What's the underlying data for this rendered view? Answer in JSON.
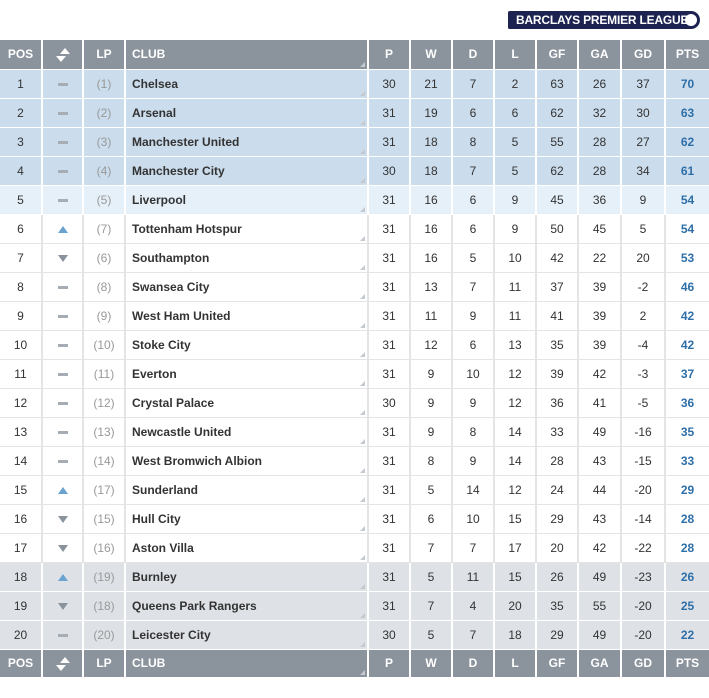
{
  "logo": {
    "text": "BARCLAYS PREMIER LEAGUE"
  },
  "table": {
    "columns": [
      "POS",
      "LP",
      "CLUB",
      "P",
      "W",
      "D",
      "L",
      "GF",
      "GA",
      "GD",
      "PTS"
    ],
    "movement": [
      "same",
      "same",
      "same",
      "same",
      "same",
      "up",
      "down",
      "same",
      "same",
      "same",
      "same",
      "same",
      "same",
      "same",
      "up",
      "down",
      "down",
      "up",
      "down",
      "same"
    ],
    "rows": [
      [
        1,
        "(1)",
        "Chelsea",
        30,
        21,
        7,
        2,
        63,
        26,
        37,
        70
      ],
      [
        2,
        "(2)",
        "Arsenal",
        31,
        19,
        6,
        6,
        62,
        32,
        30,
        63
      ],
      [
        3,
        "(3)",
        "Manchester United",
        31,
        18,
        8,
        5,
        55,
        28,
        27,
        62
      ],
      [
        4,
        "(4)",
        "Manchester City",
        30,
        18,
        7,
        5,
        62,
        28,
        34,
        61
      ],
      [
        5,
        "(5)",
        "Liverpool",
        31,
        16,
        6,
        9,
        45,
        36,
        9,
        54
      ],
      [
        6,
        "(7)",
        "Tottenham Hotspur",
        31,
        16,
        6,
        9,
        50,
        45,
        5,
        54
      ],
      [
        7,
        "(6)",
        "Southampton",
        31,
        16,
        5,
        10,
        42,
        22,
        20,
        53
      ],
      [
        8,
        "(8)",
        "Swansea City",
        31,
        13,
        7,
        11,
        37,
        39,
        -2,
        46
      ],
      [
        9,
        "(9)",
        "West Ham United",
        31,
        11,
        9,
        11,
        41,
        39,
        2,
        42
      ],
      [
        10,
        "(10)",
        "Stoke City",
        31,
        12,
        6,
        13,
        35,
        39,
        -4,
        42
      ],
      [
        11,
        "(11)",
        "Everton",
        31,
        9,
        10,
        12,
        39,
        42,
        -3,
        37
      ],
      [
        12,
        "(12)",
        "Crystal Palace",
        30,
        9,
        9,
        12,
        36,
        41,
        -5,
        36
      ],
      [
        13,
        "(13)",
        "Newcastle United",
        31,
        9,
        8,
        14,
        33,
        49,
        -16,
        35
      ],
      [
        14,
        "(14)",
        "West Bromwich Albion",
        31,
        8,
        9,
        14,
        28,
        43,
        -15,
        33
      ],
      [
        15,
        "(17)",
        "Sunderland",
        31,
        5,
        14,
        12,
        24,
        44,
        -20,
        29
      ],
      [
        16,
        "(15)",
        "Hull City",
        31,
        6,
        10,
        15,
        29,
        43,
        -14,
        28
      ],
      [
        17,
        "(16)",
        "Aston Villa",
        31,
        7,
        7,
        17,
        20,
        42,
        -22,
        28
      ],
      [
        18,
        "(19)",
        "Burnley",
        31,
        5,
        11,
        15,
        26,
        49,
        -23,
        26
      ],
      [
        19,
        "(18)",
        "Queens Park Rangers",
        31,
        7,
        4,
        20,
        35,
        55,
        -20,
        25
      ],
      [
        20,
        "(20)",
        "Leicester City",
        30,
        5,
        7,
        18,
        29,
        49,
        -20,
        22
      ]
    ]
  }
}
